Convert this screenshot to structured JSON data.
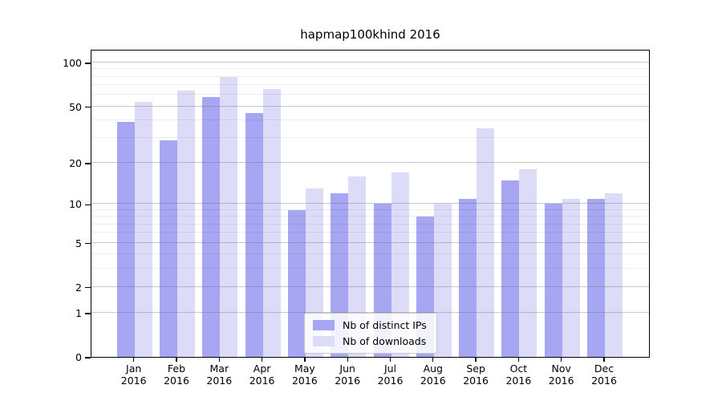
{
  "chart_data": {
    "type": "bar",
    "title": "hapmap100khind 2016",
    "categories": [
      "Jan",
      "Feb",
      "Mar",
      "Apr",
      "May",
      "Jun",
      "Jul",
      "Aug",
      "Sep",
      "Oct",
      "Nov",
      "Dec"
    ],
    "year_label": "2016",
    "series": [
      {
        "name": "Nb of distinct IPs",
        "color": "#a6a6f2",
        "values": [
          39,
          29,
          58,
          45,
          9,
          12,
          10,
          8,
          11,
          15,
          10,
          11
        ]
      },
      {
        "name": "Nb of downloads",
        "color": "#dcdcf8",
        "values": [
          54,
          64,
          80,
          66,
          13,
          16,
          17,
          10,
          35,
          18,
          11,
          12
        ]
      }
    ],
    "yscale": "log1p",
    "ylim": [
      0,
      124.3
    ],
    "y_major_ticks": [
      0,
      1,
      2,
      5,
      10,
      20,
      50,
      100
    ],
    "y_minor_gridlines": [
      3,
      4,
      6,
      7,
      8,
      9,
      30,
      40,
      60,
      70,
      80,
      90
    ],
    "grid": "horizontal",
    "legend_position": "inside-bottom-center"
  },
  "colors": {
    "background": "#ffffff",
    "axis": "#000000",
    "major_grid": "#6e6e6e",
    "minor_grid": "#ebebeb",
    "bar_distinct_ips": "#a6a6f2",
    "bar_downloads": "#dcdcf8"
  }
}
